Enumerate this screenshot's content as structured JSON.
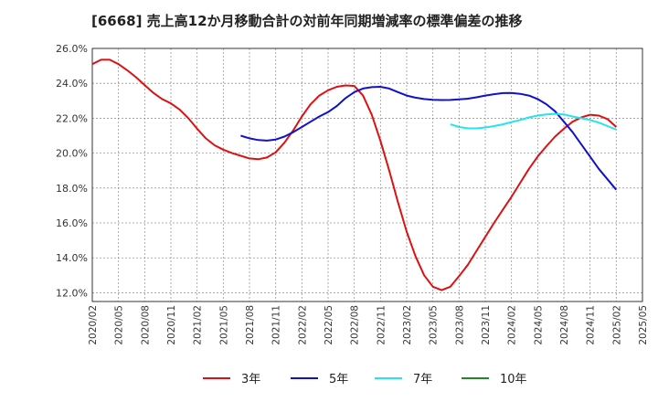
{
  "chart_data": {
    "type": "line",
    "title": "[6668]  売上高12か月移動合計の対前年同期増減率の標準偏差の推移",
    "xlabel": "",
    "ylabel": "",
    "ylim": [
      11.5,
      26.0
    ],
    "yticks": [
      "12.0%",
      "14.0%",
      "16.0%",
      "18.0%",
      "20.0%",
      "22.0%",
      "24.0%",
      "26.0%"
    ],
    "ytick_values": [
      12,
      14,
      16,
      18,
      20,
      22,
      24,
      26
    ],
    "xticks": [
      "2020/02",
      "2020/05",
      "2020/08",
      "2020/11",
      "2021/02",
      "2021/05",
      "2021/08",
      "2021/11",
      "2022/02",
      "2022/05",
      "2022/08",
      "2022/11",
      "2023/02",
      "2023/05",
      "2023/08",
      "2023/11",
      "2024/02",
      "2024/05",
      "2024/08",
      "2024/11",
      "2025/02",
      "2025/05"
    ],
    "grid": true,
    "legend_position": "bottom",
    "series": [
      {
        "name": "3年",
        "color": "#dd1111",
        "points": [
          [
            "2020/02",
            25.1
          ],
          [
            "2020/03",
            25.35
          ],
          [
            "2020/04",
            25.35
          ],
          [
            "2020/05",
            25.1
          ],
          [
            "2020/06",
            24.75
          ],
          [
            "2020/07",
            24.35
          ],
          [
            "2020/08",
            23.9
          ],
          [
            "2020/09",
            23.45
          ],
          [
            "2020/10",
            23.1
          ],
          [
            "2020/11",
            22.85
          ],
          [
            "2020/12",
            22.5
          ],
          [
            "2021/01",
            22.0
          ],
          [
            "2021/02",
            21.4
          ],
          [
            "2021/03",
            20.85
          ],
          [
            "2021/04",
            20.45
          ],
          [
            "2021/05",
            20.2
          ],
          [
            "2021/06",
            20.0
          ],
          [
            "2021/07",
            19.85
          ],
          [
            "2021/08",
            19.7
          ],
          [
            "2021/09",
            19.65
          ],
          [
            "2021/10",
            19.75
          ],
          [
            "2021/11",
            20.05
          ],
          [
            "2021/12",
            20.6
          ],
          [
            "2022/01",
            21.3
          ],
          [
            "2022/02",
            22.1
          ],
          [
            "2022/03",
            22.8
          ],
          [
            "2022/04",
            23.3
          ],
          [
            "2022/05",
            23.6
          ],
          [
            "2022/06",
            23.8
          ],
          [
            "2022/07",
            23.88
          ],
          [
            "2022/08",
            23.85
          ],
          [
            "2022/09",
            23.3
          ],
          [
            "2022/10",
            22.2
          ],
          [
            "2022/11",
            20.7
          ],
          [
            "2022/12",
            19.0
          ],
          [
            "2023/01",
            17.2
          ],
          [
            "2023/02",
            15.5
          ],
          [
            "2023/03",
            14.1
          ],
          [
            "2023/04",
            13.0
          ],
          [
            "2023/05",
            12.35
          ],
          [
            "2023/06",
            12.15
          ],
          [
            "2023/07",
            12.35
          ],
          [
            "2023/08",
            12.95
          ],
          [
            "2023/09",
            13.6
          ],
          [
            "2023/10",
            14.4
          ],
          [
            "2023/11",
            15.2
          ],
          [
            "2023/12",
            16.0
          ],
          [
            "2024/01",
            16.75
          ],
          [
            "2024/02",
            17.5
          ],
          [
            "2024/03",
            18.3
          ],
          [
            "2024/04",
            19.1
          ],
          [
            "2024/05",
            19.8
          ],
          [
            "2024/06",
            20.4
          ],
          [
            "2024/07",
            20.95
          ],
          [
            "2024/08",
            21.4
          ],
          [
            "2024/09",
            21.8
          ],
          [
            "2024/10",
            22.05
          ],
          [
            "2024/11",
            22.2
          ],
          [
            "2024/12",
            22.15
          ],
          [
            "2025/01",
            21.95
          ],
          [
            "2025/02",
            21.5
          ]
        ]
      },
      {
        "name": "5年",
        "color": "#1111cc",
        "points": [
          [
            "2021/07",
            21.0
          ],
          [
            "2021/08",
            20.85
          ],
          [
            "2021/09",
            20.75
          ],
          [
            "2021/10",
            20.72
          ],
          [
            "2021/11",
            20.78
          ],
          [
            "2021/12",
            20.95
          ],
          [
            "2022/01",
            21.2
          ],
          [
            "2022/02",
            21.5
          ],
          [
            "2022/03",
            21.8
          ],
          [
            "2022/04",
            22.1
          ],
          [
            "2022/05",
            22.35
          ],
          [
            "2022/06",
            22.7
          ],
          [
            "2022/07",
            23.15
          ],
          [
            "2022/08",
            23.5
          ],
          [
            "2022/09",
            23.7
          ],
          [
            "2022/10",
            23.78
          ],
          [
            "2022/11",
            23.8
          ],
          [
            "2022/12",
            23.7
          ],
          [
            "2023/01",
            23.5
          ],
          [
            "2023/02",
            23.3
          ],
          [
            "2023/03",
            23.18
          ],
          [
            "2023/04",
            23.1
          ],
          [
            "2023/05",
            23.06
          ],
          [
            "2023/06",
            23.04
          ],
          [
            "2023/07",
            23.05
          ],
          [
            "2023/08",
            23.08
          ],
          [
            "2023/09",
            23.12
          ],
          [
            "2023/10",
            23.2
          ],
          [
            "2023/11",
            23.3
          ],
          [
            "2023/12",
            23.38
          ],
          [
            "2024/01",
            23.44
          ],
          [
            "2024/02",
            23.45
          ],
          [
            "2024/03",
            23.4
          ],
          [
            "2024/04",
            23.3
          ],
          [
            "2024/05",
            23.1
          ],
          [
            "2024/06",
            22.8
          ],
          [
            "2024/07",
            22.4
          ],
          [
            "2024/08",
            21.8
          ],
          [
            "2024/09",
            21.2
          ],
          [
            "2024/10",
            20.5
          ],
          [
            "2024/11",
            19.8
          ],
          [
            "2024/12",
            19.1
          ],
          [
            "2025/01",
            18.5
          ],
          [
            "2025/02",
            17.9
          ]
        ]
      },
      {
        "name": "7年",
        "color": "#22e5f0",
        "points": [
          [
            "2023/07",
            21.65
          ],
          [
            "2023/08",
            21.5
          ],
          [
            "2023/09",
            21.42
          ],
          [
            "2023/10",
            21.42
          ],
          [
            "2023/11",
            21.47
          ],
          [
            "2023/12",
            21.55
          ],
          [
            "2024/01",
            21.65
          ],
          [
            "2024/02",
            21.78
          ],
          [
            "2024/03",
            21.9
          ],
          [
            "2024/04",
            22.05
          ],
          [
            "2024/05",
            22.15
          ],
          [
            "2024/06",
            22.22
          ],
          [
            "2024/07",
            22.25
          ],
          [
            "2024/08",
            22.22
          ],
          [
            "2024/09",
            22.1
          ],
          [
            "2024/10",
            22.0
          ],
          [
            "2024/11",
            21.9
          ],
          [
            "2024/12",
            21.75
          ],
          [
            "2025/01",
            21.55
          ],
          [
            "2025/02",
            21.35
          ]
        ]
      },
      {
        "name": "10年",
        "color": "#228822",
        "points": []
      }
    ]
  }
}
